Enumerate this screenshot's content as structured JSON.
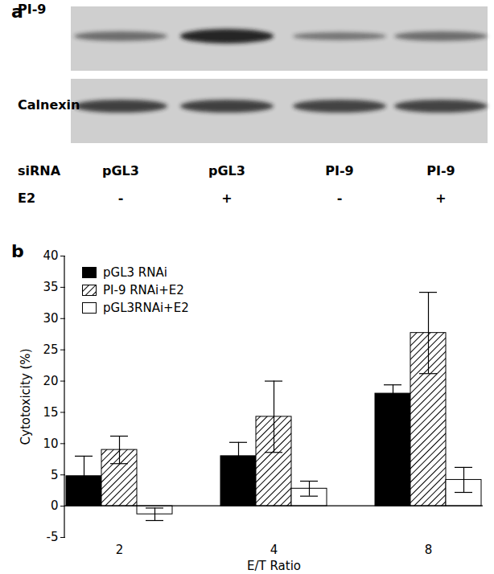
{
  "blot": {
    "title": "a",
    "rows": [
      "PI-9",
      "Calnexin"
    ],
    "conditions": [
      {
        "label": "siRNA",
        "values": [
          "pGL3",
          "pGL3",
          "PI-9",
          "PI-9"
        ]
      },
      {
        "label": "E2",
        "values": [
          "-",
          "+",
          "-",
          "+"
        ]
      }
    ]
  },
  "chart_data": {
    "type": "bar",
    "title": "b",
    "xlabel": "E/T Ratio",
    "ylabel": "Cytotoxicity (%)",
    "categories": [
      "2",
      "4",
      "8"
    ],
    "series": [
      {
        "name": "pGL3 RNAi",
        "color": "#000000",
        "line_style": "solid",
        "values": [
          4.8,
          8.0,
          18.0
        ],
        "errors": [
          3.2,
          2.2,
          1.4
        ]
      },
      {
        "name": "PI-9 RNAi+E2",
        "color": "#000000",
        "line_style": "hatched",
        "values": [
          9.0,
          14.3,
          27.7
        ],
        "errors": [
          2.2,
          5.7,
          6.5
        ]
      },
      {
        "name": "pGL3RNAi+E2",
        "color": "#ffffff",
        "line_style": "solid",
        "values": [
          -1.3,
          2.8,
          4.2
        ],
        "errors": [
          1.0,
          1.2,
          2.0
        ]
      }
    ],
    "ylim": [
      -5,
      40
    ],
    "yticks": [
      -5,
      0,
      5,
      10,
      15,
      20,
      25,
      30,
      35,
      40
    ],
    "grid": false,
    "legend": "upper left"
  }
}
